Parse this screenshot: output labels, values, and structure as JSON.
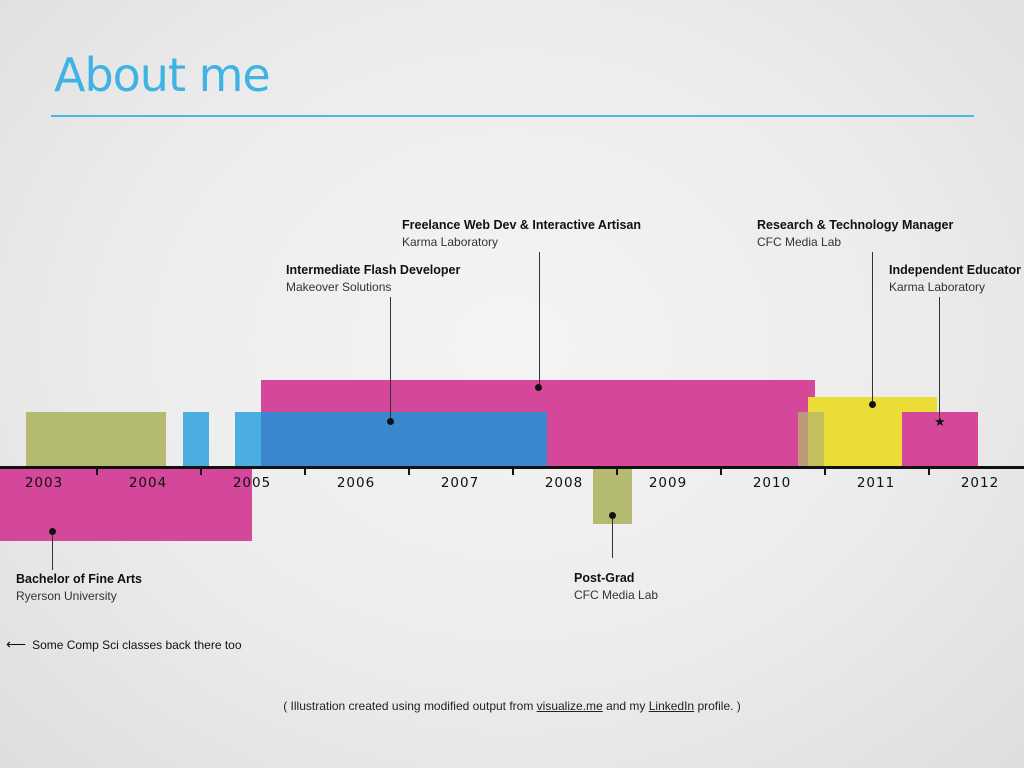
{
  "slide": {
    "title": "About me"
  },
  "axis": {
    "years": [
      "2003",
      "2004",
      "2005",
      "2006",
      "2007",
      "2008",
      "2009",
      "2010",
      "2011",
      "2012"
    ]
  },
  "entries": {
    "bfa": {
      "title": "Bachelor of Fine Arts",
      "org": "Ryerson University"
    },
    "flash": {
      "title": "Intermediate Flash Developer",
      "org": "Makeover Solutions"
    },
    "freelance": {
      "title": "Freelance Web Dev & Interactive Artisan",
      "org": "Karma Laboratory"
    },
    "postgrad": {
      "title": "Post-Grad",
      "org": "CFC Media Lab"
    },
    "research": {
      "title": "Research & Technology Manager",
      "org": "CFC Media Lab"
    },
    "educator": {
      "title": "Independent Educator",
      "org": "Karma Laboratory"
    }
  },
  "note": {
    "arrow": "⟵",
    "text": "Some Comp Sci classes back there too"
  },
  "footer": {
    "prefix": "( Illustration created using modified output from ",
    "link1": "visualize.me",
    "middle": " and my ",
    "link2": "LinkedIn",
    "suffix": " profile. )"
  },
  "colors": {
    "title": "#3fb3e3",
    "magenta": "#d4479a",
    "olive": "#b3b86a",
    "blue": "#3f8fd3",
    "lightblue": "#4aaee0",
    "yellow": "#e8dc3a"
  }
}
